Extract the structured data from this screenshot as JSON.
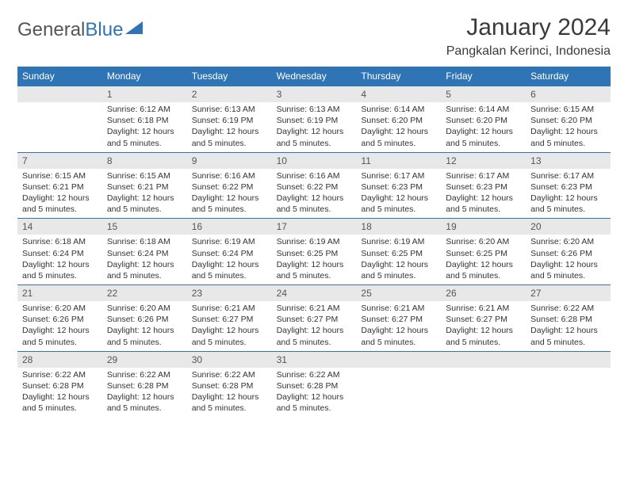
{
  "logo": {
    "text1": "General",
    "text2": "Blue"
  },
  "header": {
    "month_title": "January 2024",
    "location": "Pangkalan Kerinci, Indonesia"
  },
  "colors": {
    "header_bg": "#2f74b5",
    "header_fg": "#ffffff",
    "daynum_bg": "#e8e8e8",
    "daynum_fg": "#555555",
    "cell_border": "#2f74b5",
    "body_text": "#333333",
    "page_bg": "#ffffff"
  },
  "calendar": {
    "day_names": [
      "Sunday",
      "Monday",
      "Tuesday",
      "Wednesday",
      "Thursday",
      "Friday",
      "Saturday"
    ],
    "first_weekday_index": 1,
    "days": [
      {
        "n": 1,
        "sunrise": "6:12 AM",
        "sunset": "6:18 PM",
        "daylight": "12 hours and 5 minutes."
      },
      {
        "n": 2,
        "sunrise": "6:13 AM",
        "sunset": "6:19 PM",
        "daylight": "12 hours and 5 minutes."
      },
      {
        "n": 3,
        "sunrise": "6:13 AM",
        "sunset": "6:19 PM",
        "daylight": "12 hours and 5 minutes."
      },
      {
        "n": 4,
        "sunrise": "6:14 AM",
        "sunset": "6:20 PM",
        "daylight": "12 hours and 5 minutes."
      },
      {
        "n": 5,
        "sunrise": "6:14 AM",
        "sunset": "6:20 PM",
        "daylight": "12 hours and 5 minutes."
      },
      {
        "n": 6,
        "sunrise": "6:15 AM",
        "sunset": "6:20 PM",
        "daylight": "12 hours and 5 minutes."
      },
      {
        "n": 7,
        "sunrise": "6:15 AM",
        "sunset": "6:21 PM",
        "daylight": "12 hours and 5 minutes."
      },
      {
        "n": 8,
        "sunrise": "6:15 AM",
        "sunset": "6:21 PM",
        "daylight": "12 hours and 5 minutes."
      },
      {
        "n": 9,
        "sunrise": "6:16 AM",
        "sunset": "6:22 PM",
        "daylight": "12 hours and 5 minutes."
      },
      {
        "n": 10,
        "sunrise": "6:16 AM",
        "sunset": "6:22 PM",
        "daylight": "12 hours and 5 minutes."
      },
      {
        "n": 11,
        "sunrise": "6:17 AM",
        "sunset": "6:23 PM",
        "daylight": "12 hours and 5 minutes."
      },
      {
        "n": 12,
        "sunrise": "6:17 AM",
        "sunset": "6:23 PM",
        "daylight": "12 hours and 5 minutes."
      },
      {
        "n": 13,
        "sunrise": "6:17 AM",
        "sunset": "6:23 PM",
        "daylight": "12 hours and 5 minutes."
      },
      {
        "n": 14,
        "sunrise": "6:18 AM",
        "sunset": "6:24 PM",
        "daylight": "12 hours and 5 minutes."
      },
      {
        "n": 15,
        "sunrise": "6:18 AM",
        "sunset": "6:24 PM",
        "daylight": "12 hours and 5 minutes."
      },
      {
        "n": 16,
        "sunrise": "6:19 AM",
        "sunset": "6:24 PM",
        "daylight": "12 hours and 5 minutes."
      },
      {
        "n": 17,
        "sunrise": "6:19 AM",
        "sunset": "6:25 PM",
        "daylight": "12 hours and 5 minutes."
      },
      {
        "n": 18,
        "sunrise": "6:19 AM",
        "sunset": "6:25 PM",
        "daylight": "12 hours and 5 minutes."
      },
      {
        "n": 19,
        "sunrise": "6:20 AM",
        "sunset": "6:25 PM",
        "daylight": "12 hours and 5 minutes."
      },
      {
        "n": 20,
        "sunrise": "6:20 AM",
        "sunset": "6:26 PM",
        "daylight": "12 hours and 5 minutes."
      },
      {
        "n": 21,
        "sunrise": "6:20 AM",
        "sunset": "6:26 PM",
        "daylight": "12 hours and 5 minutes."
      },
      {
        "n": 22,
        "sunrise": "6:20 AM",
        "sunset": "6:26 PM",
        "daylight": "12 hours and 5 minutes."
      },
      {
        "n": 23,
        "sunrise": "6:21 AM",
        "sunset": "6:27 PM",
        "daylight": "12 hours and 5 minutes."
      },
      {
        "n": 24,
        "sunrise": "6:21 AM",
        "sunset": "6:27 PM",
        "daylight": "12 hours and 5 minutes."
      },
      {
        "n": 25,
        "sunrise": "6:21 AM",
        "sunset": "6:27 PM",
        "daylight": "12 hours and 5 minutes."
      },
      {
        "n": 26,
        "sunrise": "6:21 AM",
        "sunset": "6:27 PM",
        "daylight": "12 hours and 5 minutes."
      },
      {
        "n": 27,
        "sunrise": "6:22 AM",
        "sunset": "6:28 PM",
        "daylight": "12 hours and 5 minutes."
      },
      {
        "n": 28,
        "sunrise": "6:22 AM",
        "sunset": "6:28 PM",
        "daylight": "12 hours and 5 minutes."
      },
      {
        "n": 29,
        "sunrise": "6:22 AM",
        "sunset": "6:28 PM",
        "daylight": "12 hours and 5 minutes."
      },
      {
        "n": 30,
        "sunrise": "6:22 AM",
        "sunset": "6:28 PM",
        "daylight": "12 hours and 5 minutes."
      },
      {
        "n": 31,
        "sunrise": "6:22 AM",
        "sunset": "6:28 PM",
        "daylight": "12 hours and 5 minutes."
      }
    ],
    "labels": {
      "sunrise_prefix": "Sunrise: ",
      "sunset_prefix": "Sunset: ",
      "daylight_prefix": "Daylight: "
    }
  }
}
